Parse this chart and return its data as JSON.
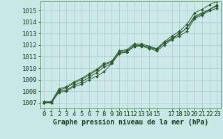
{
  "background_color": "#c8e8e8",
  "plot_bg_color": "#cce8e8",
  "grid_color": "#b0d0d0",
  "line_color": "#2d5a2d",
  "marker_color": "#2d5a2d",
  "xlabel": "Graphe pression niveau de la mer (hPa)",
  "ylim": [
    1006.5,
    1015.8
  ],
  "xlim": [
    -0.5,
    23.5
  ],
  "yticks": [
    1007,
    1008,
    1009,
    1010,
    1011,
    1012,
    1013,
    1014,
    1015
  ],
  "xticks": [
    0,
    1,
    2,
    3,
    4,
    5,
    6,
    7,
    8,
    9,
    10,
    11,
    12,
    13,
    14,
    15,
    17,
    18,
    19,
    20,
    21,
    22,
    23
  ],
  "series": [
    [
      1007.0,
      1007.0,
      1007.9,
      1008.0,
      1008.4,
      1008.6,
      1009.0,
      1009.3,
      1009.7,
      1010.4,
      1011.3,
      1011.4,
      1011.9,
      1012.0,
      1011.8,
      1011.7,
      1012.2,
      1012.5,
      1013.0,
      1013.5,
      1014.5,
      1014.8,
      1015.1,
      1015.5
    ],
    [
      1007.0,
      1007.0,
      1008.0,
      1008.1,
      1008.5,
      1008.8,
      1009.2,
      1009.6,
      1010.1,
      1010.4,
      1011.3,
      1011.4,
      1011.9,
      1011.9,
      1011.7,
      1011.5,
      1012.0,
      1012.5,
      1012.8,
      1013.2,
      1014.3,
      1014.6,
      1015.0,
      1015.2
    ],
    [
      1007.0,
      1007.1,
      1008.1,
      1008.3,
      1008.7,
      1009.0,
      1009.4,
      1009.8,
      1010.3,
      1010.5,
      1011.4,
      1011.5,
      1012.0,
      1012.0,
      1011.8,
      1011.6,
      1012.2,
      1012.6,
      1013.0,
      1013.5,
      1014.4,
      1014.7,
      1015.1,
      1015.4
    ],
    [
      1007.1,
      1007.1,
      1008.2,
      1008.4,
      1008.8,
      1009.1,
      1009.5,
      1009.9,
      1010.4,
      1010.6,
      1011.5,
      1011.6,
      1012.1,
      1012.1,
      1011.9,
      1011.7,
      1012.3,
      1012.8,
      1013.2,
      1013.8,
      1014.8,
      1015.1,
      1015.5,
      1015.8
    ]
  ],
  "fontsize_xlabel": 7,
  "fontsize_ticks": 6.5
}
